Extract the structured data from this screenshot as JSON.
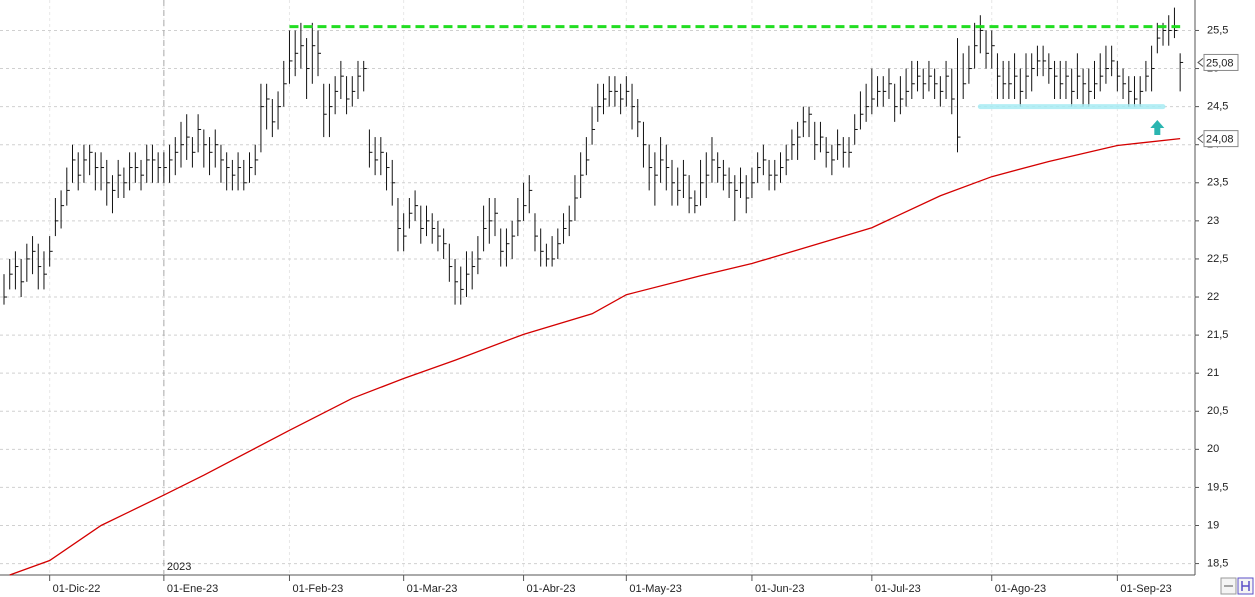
{
  "chart_data": {
    "type": "ohlc",
    "xlim": [
      -0.7,
      208.6
    ],
    "ylim": [
      18.35,
      25.9
    ],
    "yticks": [
      {
        "value": 18.5,
        "label": "18,5"
      },
      19,
      {
        "value": 19.5,
        "label": "19,5"
      },
      20,
      {
        "value": 20.5,
        "label": "20,5"
      },
      21,
      {
        "value": 21.5,
        "label": "21,5"
      },
      22,
      {
        "value": 22.5,
        "label": "22,5"
      },
      23,
      {
        "value": 23.5,
        "label": "23,5"
      },
      24,
      {
        "value": 24.5,
        "label": "24,5"
      },
      25,
      {
        "value": 25.5,
        "label": "25,5"
      }
    ],
    "xticks": [
      {
        "value": 8,
        "label": "01-Dic-22"
      },
      {
        "value": 28,
        "label": "01-Ene-23"
      },
      {
        "value": 50,
        "label": "01-Feb-23"
      },
      {
        "value": 70,
        "label": "01-Mar-23"
      },
      {
        "value": 91,
        "label": "01-Abr-23"
      },
      {
        "value": 109,
        "label": "01-May-23"
      },
      {
        "value": 131,
        "label": "01-Jun-23"
      },
      {
        "value": 152,
        "label": "01-Jul-23"
      },
      {
        "value": 173,
        "label": "01-Ago-23"
      },
      {
        "value": 195,
        "label": "01-Sep-23"
      }
    ],
    "year_marker": {
      "x": 28,
      "label": "2023"
    },
    "grid": true,
    "bar_color": "#111111",
    "ohlc": {
      "high": [
        22.3,
        22.5,
        22.6,
        22.5,
        22.7,
        22.8,
        22.7,
        22.6,
        22.8,
        23.3,
        23.4,
        23.7,
        24.0,
        23.9,
        24.0,
        24.0,
        23.9,
        23.9,
        23.8,
        23.6,
        23.8,
        23.7,
        23.9,
        23.9,
        23.8,
        24.0,
        24.0,
        23.9,
        23.9,
        24.0,
        24.1,
        24.3,
        24.4,
        24.1,
        24.4,
        24.2,
        24.1,
        24.2,
        24.0,
        23.9,
        23.8,
        23.9,
        23.8,
        23.9,
        24.0,
        24.8,
        24.8,
        24.6,
        24.7,
        25.1,
        25.5,
        25.5,
        25.6,
        25.4,
        25.6,
        25.5,
        24.8,
        24.8,
        24.9,
        25.1,
        24.9,
        24.9,
        25.1,
        25.1,
        24.2,
        24.1,
        24.1,
        23.9,
        23.8,
        23.3,
        23.1,
        23.3,
        23.4,
        23.2,
        23.2,
        23.1,
        23.0,
        22.9,
        22.7,
        22.5,
        22.4,
        22.6,
        22.6,
        22.8,
        23.2,
        23.3,
        23.3,
        22.9,
        22.9,
        23.0,
        23.3,
        23.5,
        23.6,
        23.1,
        22.9,
        22.7,
        22.8,
        22.9,
        23.1,
        23.2,
        23.6,
        23.9,
        24.1,
        24.5,
        24.8,
        24.8,
        24.9,
        24.9,
        24.8,
        24.9,
        24.8,
        24.6,
        24.3,
        24.0,
        23.9,
        24.1,
        24.0,
        23.8,
        23.7,
        23.8,
        23.6,
        23.4,
        23.8,
        23.9,
        24.1,
        23.9,
        23.8,
        23.7,
        23.6,
        23.7,
        23.6,
        23.7,
        23.9,
        24.0,
        23.8,
        23.8,
        23.9,
        24.0,
        24.2,
        24.3,
        24.5,
        24.5,
        24.3,
        24.3,
        24.1,
        24.0,
        24.2,
        24.1,
        24.1,
        24.4,
        24.7,
        24.8,
        25.0,
        24.9,
        24.9,
        25.0,
        24.8,
        24.9,
        25.0,
        25.1,
        25.1,
        25.0,
        25.1,
        25.0,
        24.9,
        25.1,
        25.0,
        25.4,
        25.2,
        25.3,
        25.6,
        25.7,
        25.5,
        25.5,
        25.2,
        25.1,
        25.1,
        25.2,
        25.0,
        25.2,
        25.2,
        25.3,
        25.3,
        25.2,
        25.1,
        25.1,
        25.1,
        25.0,
        25.2,
        25.0,
        25.0,
        25.1,
        25.2,
        25.3,
        25.3,
        25.1,
        25.0,
        24.9,
        24.9,
        24.9,
        25.1,
        25.3,
        25.6,
        25.6,
        25.7,
        25.8,
        25.2
      ],
      "low": [
        21.9,
        22.1,
        22.1,
        22.0,
        22.2,
        22.3,
        22.1,
        22.1,
        22.4,
        22.8,
        22.9,
        23.2,
        23.5,
        23.4,
        23.5,
        23.6,
        23.4,
        23.4,
        23.2,
        23.1,
        23.3,
        23.3,
        23.4,
        23.5,
        23.4,
        23.5,
        23.5,
        23.5,
        23.5,
        23.5,
        23.6,
        23.7,
        23.8,
        23.7,
        23.9,
        23.7,
        23.6,
        23.7,
        23.5,
        23.4,
        23.4,
        23.4,
        23.4,
        23.5,
        23.6,
        23.9,
        24.2,
        24.1,
        24.2,
        24.5,
        24.8,
        24.9,
        25.0,
        24.6,
        24.8,
        24.9,
        24.1,
        24.1,
        24.4,
        24.6,
        24.4,
        24.5,
        24.6,
        24.7,
        23.7,
        23.6,
        23.6,
        23.4,
        23.2,
        22.6,
        22.6,
        22.9,
        23.0,
        22.7,
        22.8,
        22.7,
        22.6,
        22.5,
        22.2,
        21.9,
        21.9,
        22.0,
        22.1,
        22.3,
        22.6,
        22.7,
        22.8,
        22.4,
        22.4,
        22.5,
        22.8,
        23.0,
        23.1,
        22.6,
        22.4,
        22.4,
        22.4,
        22.5,
        22.7,
        22.8,
        23.0,
        23.3,
        23.6,
        24.0,
        24.3,
        24.4,
        24.5,
        24.5,
        24.4,
        24.5,
        24.2,
        24.1,
        23.7,
        23.4,
        23.2,
        23.5,
        23.4,
        23.2,
        23.2,
        23.3,
        23.1,
        23.1,
        23.2,
        23.3,
        23.5,
        23.5,
        23.4,
        23.3,
        23.0,
        23.3,
        23.1,
        23.3,
        23.5,
        23.6,
        23.4,
        23.4,
        23.5,
        23.6,
        23.8,
        23.8,
        24.1,
        24.1,
        23.8,
        23.9,
        23.7,
        23.6,
        23.8,
        23.7,
        23.7,
        24.0,
        24.2,
        24.3,
        24.4,
        24.5,
        24.5,
        24.6,
        24.3,
        24.4,
        24.5,
        24.6,
        24.7,
        24.6,
        24.7,
        24.6,
        24.5,
        24.6,
        24.4,
        23.9,
        24.6,
        24.8,
        25.0,
        25.2,
        25.0,
        25.0,
        24.6,
        24.6,
        24.6,
        24.6,
        24.5,
        24.6,
        24.7,
        24.9,
        24.9,
        24.8,
        24.6,
        24.6,
        24.6,
        24.5,
        24.6,
        24.5,
        24.5,
        24.6,
        24.7,
        24.8,
        24.9,
        24.7,
        24.6,
        24.5,
        24.5,
        24.5,
        24.7,
        24.7,
        25.2,
        25.3,
        25.3,
        25.4,
        24.7
      ],
      "close": [
        22.0,
        22.3,
        22.4,
        22.2,
        22.5,
        22.6,
        22.4,
        22.3,
        22.6,
        23.0,
        23.2,
        23.4,
        23.8,
        23.6,
        23.8,
        23.9,
        23.7,
        23.7,
        23.5,
        23.4,
        23.6,
        23.5,
        23.7,
        23.7,
        23.6,
        23.8,
        23.8,
        23.7,
        23.7,
        23.8,
        23.9,
        24.0,
        24.1,
        23.9,
        24.2,
        24.0,
        23.9,
        24.0,
        23.8,
        23.7,
        23.6,
        23.7,
        23.5,
        23.7,
        23.8,
        24.5,
        24.6,
        24.3,
        24.5,
        24.8,
        25.1,
        25.2,
        25.3,
        25.0,
        25.3,
        25.2,
        24.4,
        24.5,
        24.7,
        24.9,
        24.6,
        24.7,
        24.9,
        25.0,
        23.9,
        23.8,
        23.9,
        23.7,
        23.5,
        22.9,
        22.8,
        23.1,
        23.2,
        22.9,
        23.0,
        22.9,
        22.8,
        22.7,
        22.4,
        22.2,
        22.1,
        22.3,
        22.4,
        22.5,
        22.9,
        23.0,
        23.1,
        22.6,
        22.7,
        22.8,
        23.0,
        23.2,
        23.4,
        22.8,
        22.6,
        22.5,
        22.5,
        22.7,
        22.9,
        23.0,
        23.3,
        23.6,
        23.8,
        24.2,
        24.5,
        24.6,
        24.7,
        24.7,
        24.6,
        24.7,
        24.5,
        24.3,
        24.0,
        23.7,
        23.6,
        23.8,
        23.7,
        23.5,
        23.4,
        23.6,
        23.3,
        23.2,
        23.5,
        23.6,
        23.8,
        23.7,
        23.6,
        23.5,
        23.4,
        23.5,
        23.3,
        23.5,
        23.7,
        23.8,
        23.6,
        23.6,
        23.7,
        23.8,
        24.0,
        24.1,
        24.3,
        24.4,
        24.0,
        24.1,
        23.9,
        23.8,
        24.0,
        23.9,
        23.9,
        24.2,
        24.4,
        24.5,
        24.6,
        24.7,
        24.7,
        24.8,
        24.5,
        24.6,
        24.7,
        24.8,
        24.9,
        24.8,
        24.9,
        24.8,
        24.7,
        24.9,
        24.6,
        24.1,
        24.8,
        25.0,
        25.3,
        25.5,
        25.2,
        25.3,
        24.9,
        24.8,
        24.8,
        24.9,
        24.7,
        24.9,
        25.0,
        25.1,
        25.1,
        25.0,
        24.9,
        24.8,
        24.9,
        24.7,
        24.9,
        24.8,
        24.7,
        24.8,
        24.9,
        25.0,
        25.1,
        24.9,
        24.8,
        24.7,
        24.6,
        24.7,
        24.9,
        25.0,
        25.4,
        25.5,
        25.5,
        25.5,
        25.08
      ]
    },
    "ma": {
      "color": "#d40000",
      "x": [
        1,
        8,
        17,
        28,
        35,
        50,
        61,
        70,
        79,
        91,
        103,
        109,
        122,
        131,
        140,
        152,
        164,
        173,
        183,
        195,
        206
      ],
      "values": [
        18.35,
        18.54,
        19.0,
        19.4,
        19.66,
        20.25,
        20.67,
        20.93,
        21.17,
        21.51,
        21.78,
        22.03,
        22.28,
        22.44,
        22.64,
        22.91,
        23.33,
        23.58,
        23.78,
        23.99,
        24.08
      ]
    },
    "resistance": {
      "value": 25.55,
      "from": 50,
      "to": 206,
      "color": "#22dd22"
    },
    "support": {
      "value": 24.5,
      "from": 171,
      "to": 203,
      "color": "#a8ecf4"
    },
    "arrow": {
      "x": 202,
      "y": 24.22,
      "color": "#2ab5b0"
    },
    "last_labels": [
      {
        "value": 25.08,
        "label": "25,08"
      },
      {
        "value": 24.08,
        "label": "24,08"
      }
    ]
  }
}
